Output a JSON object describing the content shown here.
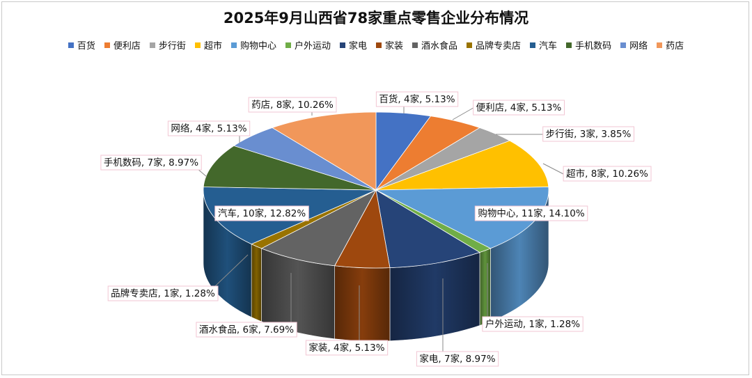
{
  "chart_data": {
    "type": "pie",
    "title": "2025年9月山西省78家重点零售企业分布情况",
    "slices": [
      {
        "name": "百货",
        "count": 4,
        "percent": 5.13,
        "label": "百货, 4家, 5.13%",
        "color": "#4472C4"
      },
      {
        "name": "便利店",
        "count": 4,
        "percent": 5.13,
        "label": "便利店, 4家, 5.13%",
        "color": "#ED7D31"
      },
      {
        "name": "步行街",
        "count": 3,
        "percent": 3.85,
        "label": "步行街, 3家, 3.85%",
        "color": "#A5A5A5"
      },
      {
        "name": "超市",
        "count": 8,
        "percent": 10.26,
        "label": "超市, 8家, 10.26%",
        "color": "#FFC000"
      },
      {
        "name": "购物中心",
        "count": 11,
        "percent": 14.1,
        "label": "购物中心, 11家, 14.10%",
        "color": "#5B9BD5"
      },
      {
        "name": "户外运动",
        "count": 1,
        "percent": 1.28,
        "label": "户外运动, 1家, 1.28%",
        "color": "#70AD47"
      },
      {
        "name": "家电",
        "count": 7,
        "percent": 8.97,
        "label": "家电, 7家, 8.97%",
        "color": "#264478"
      },
      {
        "name": "家装",
        "count": 4,
        "percent": 5.13,
        "label": "家装, 4家, 5.13%",
        "color": "#9E480E"
      },
      {
        "name": "酒水食品",
        "count": 6,
        "percent": 7.69,
        "label": "酒水食品, 6家, 7.69%",
        "color": "#636363"
      },
      {
        "name": "品牌专卖店",
        "count": 1,
        "percent": 1.28,
        "label": "品牌专卖店, 1家, 1.28%",
        "color": "#997300"
      },
      {
        "name": "汽车",
        "count": 10,
        "percent": 12.82,
        "label": "汽车, 10家, 12.82%",
        "color": "#255E91"
      },
      {
        "name": "手机数码",
        "count": 7,
        "percent": 8.97,
        "label": "手机数码, 7家, 8.97%",
        "color": "#43682B"
      },
      {
        "name": "网络",
        "count": 4,
        "percent": 5.13,
        "label": "网络, 4家, 5.13%",
        "color": "#698ED0"
      },
      {
        "name": "药店",
        "count": 8,
        "percent": 10.26,
        "label": "药店, 8家, 10.26%",
        "color": "#F1975A"
      }
    ],
    "total": 78,
    "style": "3d-pie",
    "legend_position": "top"
  }
}
